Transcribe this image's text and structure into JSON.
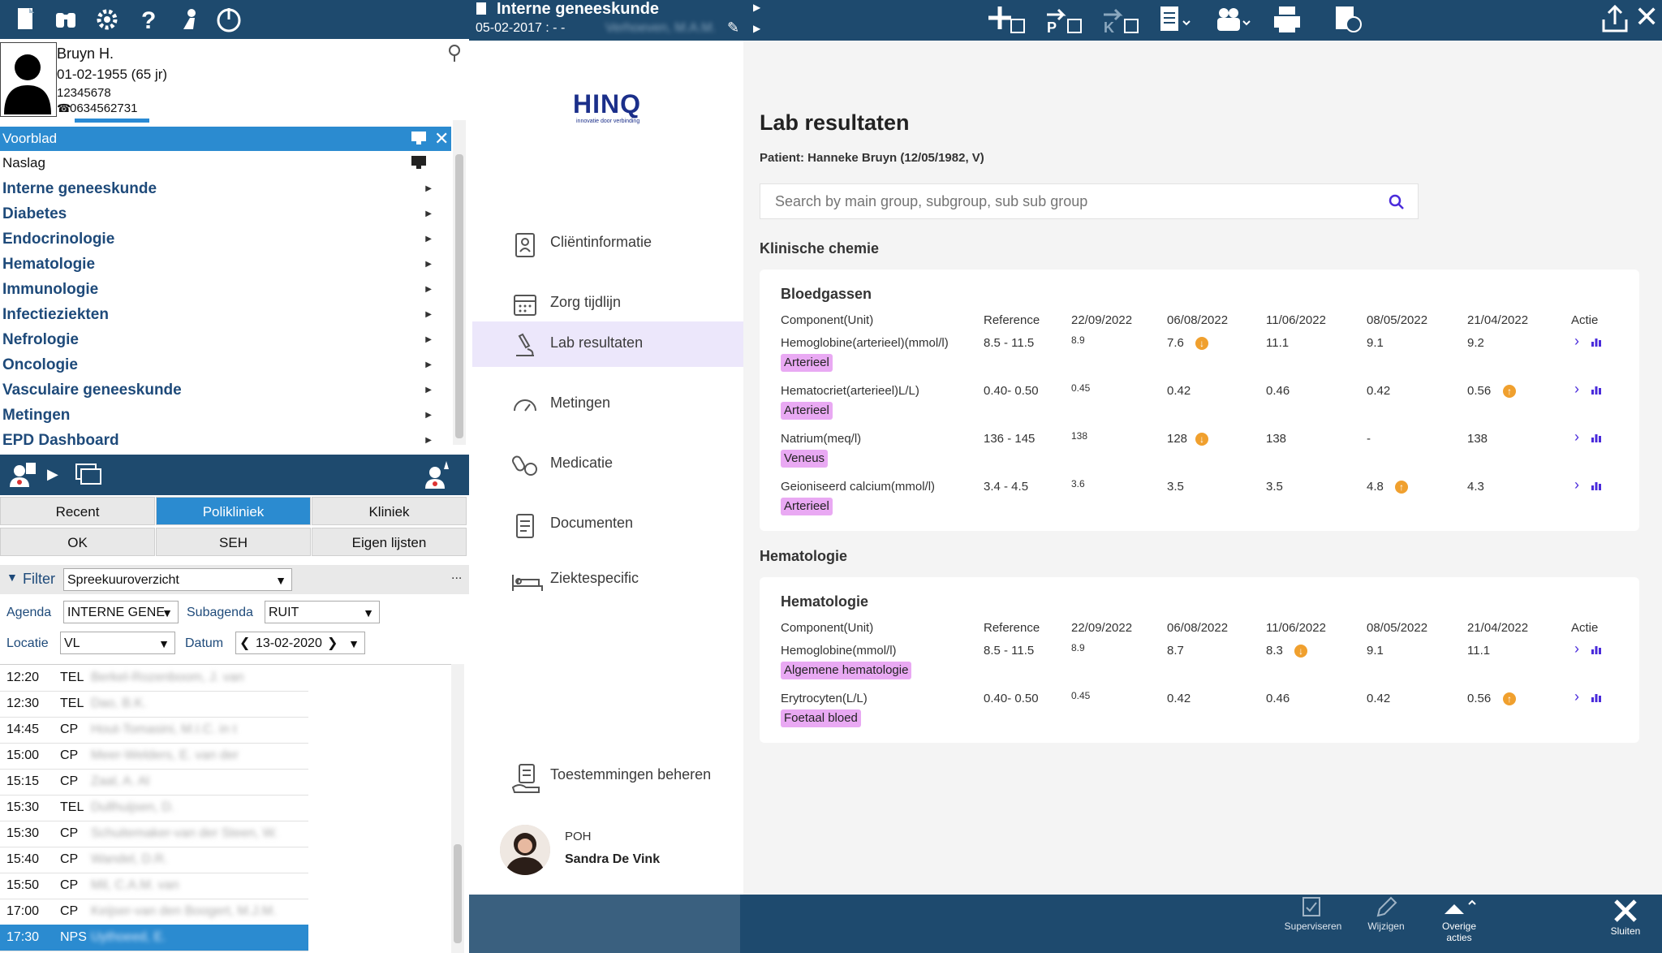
{
  "left_panel": {
    "patient": {
      "name": "Bruyn H.",
      "dob": "01-02-1955 (65 jr)",
      "id": "12345678",
      "phone": "0634562731"
    },
    "menu": [
      {
        "label": "Voorblad"
      },
      {
        "label": "Naslag"
      },
      {
        "label": "Interne geneeskunde"
      },
      {
        "label": "Diabetes"
      },
      {
        "label": "Endocrinologie"
      },
      {
        "label": "Hematologie"
      },
      {
        "label": "Immunologie"
      },
      {
        "label": "Infectieziekten"
      },
      {
        "label": "Nefrologie"
      },
      {
        "label": "Oncologie"
      },
      {
        "label": "Vasculaire geneeskunde"
      },
      {
        "label": "Metingen"
      },
      {
        "label": "EPD Dashboard"
      }
    ],
    "tabs_row1": [
      "Recent",
      "Polikliniek",
      "Kliniek"
    ],
    "tabs_row2": [
      "OK",
      "SEH",
      "Eigen lijsten"
    ],
    "filter": {
      "label": "Filter",
      "value": "Spreekuuroverzicht",
      "more": "..."
    },
    "agenda": {
      "label": "Agenda",
      "value": "INTERNE GENE"
    },
    "subagenda": {
      "label": "Subagenda",
      "value": "RUIT"
    },
    "locatie": {
      "label": "Locatie",
      "value": "VL"
    },
    "datum": {
      "label": "Datum",
      "value": "13-02-2020"
    },
    "schedule": [
      {
        "time": "12:20",
        "type": "TEL",
        "name": "Berkel-Rozenboom, J. van"
      },
      {
        "time": "12:30",
        "type": "TEL",
        "name": "Dao, B.K."
      },
      {
        "time": "14:45",
        "type": "CP",
        "name": "Hout-Tomasini, M.I.C. in t"
      },
      {
        "time": "15:00",
        "type": "CP",
        "name": "Meer-Welders, E. van der"
      },
      {
        "time": "15:15",
        "type": "CP",
        "name": "Zaal, A. Al"
      },
      {
        "time": "15:30",
        "type": "TEL",
        "name": "Dullhuijsen, D."
      },
      {
        "time": "15:30",
        "type": "CP",
        "name": "Schuitemaker-van der Steen, W."
      },
      {
        "time": "15:40",
        "type": "CP",
        "name": "Wandel, D.R."
      },
      {
        "time": "15:50",
        "type": "CP",
        "name": "Mil, C.A.M. van"
      },
      {
        "time": "17:00",
        "type": "CP",
        "name": "Keijser-van den Boogert, M.J.M."
      },
      {
        "time": "17:30",
        "type": "NPS",
        "name": "Uythoeed, E."
      }
    ]
  },
  "app_header": {
    "title": "Interne geneeskunde",
    "subtitle": "05-02-2017 : - -",
    "subtitle_blurred": "Verhoeven, M.A.M."
  },
  "nav": {
    "logo": "HINQ",
    "logo_tagline": "innovatie door verbinding",
    "items": [
      {
        "label": "Cliëntinformatie",
        "icon": "clipboard-person-icon"
      },
      {
        "label": "Zorg tijdlijn",
        "icon": "calendar-icon"
      },
      {
        "label": "Lab resultaten",
        "icon": "microscope-icon"
      },
      {
        "label": "Metingen",
        "icon": "gauge-icon"
      },
      {
        "label": "Medicatie",
        "icon": "pills-icon"
      },
      {
        "label": "Documenten",
        "icon": "document-icon"
      },
      {
        "label": "Ziektespecific",
        "icon": "bed-icon"
      }
    ],
    "consent": "Toestemmingen beheren",
    "user_role": "POH",
    "user_name": "Sandra De Vink"
  },
  "main": {
    "title": "Lab resultaten",
    "patient_line": "Patient: Hanneke Bruyn (12/05/1982, V)",
    "search_placeholder": "Search by main group, subgroup, sub sub group",
    "columns": [
      "Component(Unit)",
      "Reference",
      "22/09/2022",
      "06/08/2022",
      "11/06/2022",
      "08/05/2022",
      "21/04/2022",
      "Actie"
    ],
    "sections": [
      {
        "title": "Klinische chemie",
        "card_title": "Bloedgassen",
        "rows": [
          {
            "component": "Hemoglobine(arterieel)(mmol/l)",
            "reference": "8.5 - 11.5",
            "values": [
              "8.9",
              "7.6",
              "11.1",
              "9.1",
              "9.2"
            ],
            "warn": [
              false,
              "down",
              false,
              false,
              false
            ],
            "tag": "Arterieel"
          },
          {
            "component": "Hematocriet(arterieel)L/L)",
            "reference": "0.40- 0.50",
            "values": [
              "0.45",
              "0.42",
              "0.46",
              "0.42",
              "0.56"
            ],
            "warn": [
              false,
              false,
              false,
              false,
              "up"
            ],
            "tag": "Arterieel"
          },
          {
            "component": "Natrium(meq/l)",
            "reference": "136 - 145",
            "values": [
              "138",
              "128",
              "138",
              "-",
              "138"
            ],
            "warn": [
              false,
              "down",
              false,
              false,
              false
            ],
            "tag": "Veneus"
          },
          {
            "component": "Geioniseerd calcium(mmol/l)",
            "reference": "3.4 - 4.5",
            "values": [
              "3.6",
              "3.5",
              "3.5",
              "4.8",
              "4.3"
            ],
            "warn": [
              false,
              false,
              false,
              "up",
              false
            ],
            "tag": "Arterieel"
          }
        ]
      },
      {
        "title": "Hematologie",
        "card_title": "Hematologie",
        "rows": [
          {
            "component": "Hemoglobine(mmol/l)",
            "reference": "8.5 - 11.5",
            "values": [
              "8.9",
              "8.7",
              "8.3",
              "9.1",
              "11.1"
            ],
            "warn": [
              false,
              false,
              "down",
              false,
              false
            ],
            "tag": "Algemene hematologie"
          },
          {
            "component": "Erytrocyten(L/L)",
            "reference": "0.40- 0.50",
            "values": [
              "0.45",
              "0.42",
              "0.46",
              "0.42",
              "0.56"
            ],
            "warn": [
              false,
              false,
              false,
              false,
              "up"
            ],
            "tag": "Foetaal bloed"
          }
        ]
      }
    ]
  },
  "bottom_actions": [
    "Superviseren",
    "Wijzigen",
    "Overige acties",
    "Sluiten"
  ],
  "colors": {
    "header": "#1e4a6e",
    "selection": "#2b8bd0",
    "nav_active": "#ece7fb",
    "tag": "#e9a9f3",
    "warning": "#f0a02e",
    "action": "#4a2bdb"
  }
}
